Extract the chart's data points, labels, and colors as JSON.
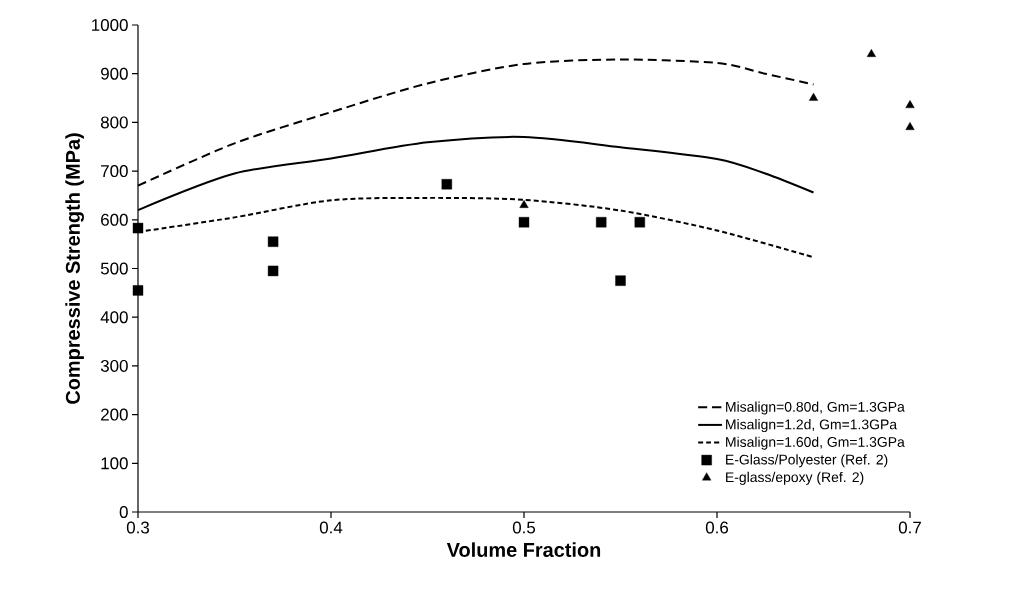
{
  "chart_data": {
    "type": "line",
    "xlabel": "Volume Fraction",
    "ylabel": "Compressive Strength (MPa)",
    "xlim": [
      0.3,
      0.7
    ],
    "xticks": [
      0.3,
      0.4,
      0.5,
      0.6,
      0.7
    ],
    "ylim": [
      0,
      1000
    ],
    "yticks": [
      0,
      100,
      200,
      300,
      400,
      500,
      600,
      700,
      800,
      900,
      1000
    ],
    "grid": false,
    "legend": "bottom right",
    "series": [
      {
        "name": "Misalign=0.80d, Gm=1.3GPa",
        "line_style": "dashed",
        "color": "#000000",
        "x": [
          0.3,
          0.35,
          0.4,
          0.45,
          0.5,
          0.55,
          0.6,
          0.625,
          0.65
        ],
        "values": [
          670,
          757,
          821,
          880,
          920,
          929,
          922,
          900,
          878
        ]
      },
      {
        "name": "Misalign=1.2d, Gm=1.3GPa",
        "line_style": "solid",
        "color": "#000000",
        "x": [
          0.3,
          0.35,
          0.4,
          0.45,
          0.5,
          0.55,
          0.6,
          0.625,
          0.65
        ],
        "values": [
          620,
          695,
          726,
          759,
          770,
          749,
          725,
          695,
          656
        ]
      },
      {
        "name": "Misalign=1.60d, Gm=1.3GPa",
        "line_style": "dotted",
        "color": "#000000",
        "x": [
          0.3,
          0.35,
          0.4,
          0.45,
          0.5,
          0.55,
          0.6,
          0.65
        ],
        "values": [
          575,
          605,
          640,
          645,
          641,
          619,
          578,
          523
        ]
      },
      {
        "name": "E-Glass/Polyester (Ref. 2)",
        "type": "scatter",
        "marker": "square",
        "color": "#000000",
        "x": [
          0.3,
          0.3,
          0.37,
          0.37,
          0.46,
          0.5,
          0.54,
          0.55,
          0.56
        ],
        "values": [
          583,
          455,
          555,
          495,
          673,
          595,
          595,
          475,
          595
        ]
      },
      {
        "name": "E-glass/epoxy (Ref. 2)",
        "type": "scatter",
        "marker": "triangle",
        "color": "#000000",
        "x": [
          0.5,
          0.65,
          0.68,
          0.7,
          0.7
        ],
        "values": [
          630,
          850,
          940,
          835,
          790
        ]
      }
    ]
  }
}
